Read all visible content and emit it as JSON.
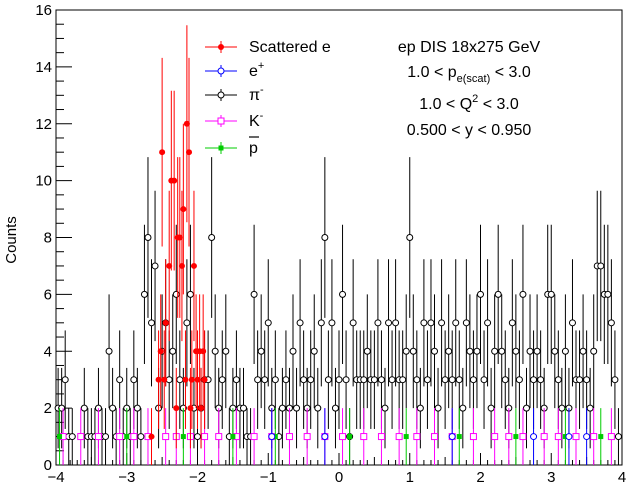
{
  "chart_data": {
    "type": "scatter",
    "xlim": [
      -4,
      4
    ],
    "ylim": [
      0,
      16
    ],
    "xticks": [
      -4,
      -3,
      -2,
      -1,
      0,
      1,
      2,
      3,
      4
    ],
    "yticks": [
      0,
      2,
      4,
      6,
      8,
      10,
      12,
      14,
      16
    ],
    "ylabel": "Counts",
    "xlabel": "",
    "grid": false,
    "legend_position": "top-left-center",
    "annotations": [
      "ep DIS 18x275 GeV",
      "1.0 < p_e(scat) < 3.0",
      "1.0 < Q^2 < 3.0",
      "0.500 < y < 0.950"
    ],
    "series": [
      {
        "name": "Scattered e",
        "color": "#ff0000",
        "marker": "filled-circle",
        "points": [
          [
            -2.65,
            1
          ],
          [
            -2.55,
            3
          ],
          [
            -2.52,
            4
          ],
          [
            -2.5,
            11
          ],
          [
            -2.47,
            3
          ],
          [
            -2.45,
            5
          ],
          [
            -2.4,
            7
          ],
          [
            -2.37,
            10
          ],
          [
            -2.33,
            10
          ],
          [
            -2.3,
            2
          ],
          [
            -2.28,
            8
          ],
          [
            -2.25,
            8
          ],
          [
            -2.22,
            7
          ],
          [
            -2.2,
            9
          ],
          [
            -2.17,
            3
          ],
          [
            -2.15,
            12
          ],
          [
            -2.12,
            11
          ],
          [
            -2.1,
            2
          ],
          [
            -2.08,
            3
          ],
          [
            -2.05,
            7
          ],
          [
            -2.02,
            4
          ],
          [
            -2.0,
            3
          ],
          [
            -1.97,
            4
          ],
          [
            -1.95,
            2
          ],
          [
            -1.92,
            4
          ],
          [
            -1.9,
            3
          ]
        ]
      },
      {
        "name": "e+",
        "color": "#0000ff",
        "marker": "open-circle",
        "points": [
          [
            -0.95,
            1
          ],
          [
            -0.2,
            1
          ],
          [
            1.6,
            1
          ],
          [
            2.75,
            1
          ],
          [
            3.25,
            1
          ],
          [
            3.5,
            1
          ]
        ]
      },
      {
        "name": "π-",
        "color": "#000000",
        "marker": "open-circle",
        "points": [
          [
            -3.97,
            2
          ],
          [
            -3.92,
            2
          ],
          [
            -3.87,
            3
          ],
          [
            -3.82,
            1
          ],
          [
            -3.77,
            1
          ],
          [
            -3.6,
            2
          ],
          [
            -3.55,
            1
          ],
          [
            -3.5,
            1
          ],
          [
            -3.45,
            1
          ],
          [
            -3.4,
            2
          ],
          [
            -3.35,
            1
          ],
          [
            -3.3,
            1
          ],
          [
            -3.25,
            4
          ],
          [
            -3.2,
            2
          ],
          [
            -3.15,
            1
          ],
          [
            -3.1,
            3
          ],
          [
            -3.05,
            1
          ],
          [
            -3.0,
            2
          ],
          [
            -2.95,
            1
          ],
          [
            -2.9,
            3
          ],
          [
            -2.85,
            2
          ],
          [
            -2.8,
            1
          ],
          [
            -2.75,
            6
          ],
          [
            -2.7,
            8
          ],
          [
            -2.65,
            5
          ],
          [
            -2.6,
            7
          ],
          [
            -2.55,
            2
          ],
          [
            -2.5,
            4
          ],
          [
            -2.45,
            5
          ],
          [
            -2.4,
            3
          ],
          [
            -2.35,
            4
          ],
          [
            -2.3,
            6
          ],
          [
            -2.25,
            3
          ],
          [
            -2.2,
            2
          ],
          [
            -2.15,
            5
          ],
          [
            -2.1,
            6
          ],
          [
            -2.05,
            2
          ],
          [
            -2.0,
            1
          ],
          [
            -1.95,
            2
          ],
          [
            -1.9,
            3
          ],
          [
            -1.85,
            3
          ],
          [
            -1.8,
            8
          ],
          [
            -1.75,
            4
          ],
          [
            -1.7,
            2
          ],
          [
            -1.65,
            3
          ],
          [
            -1.6,
            4
          ],
          [
            -1.55,
            1
          ],
          [
            -1.5,
            2
          ],
          [
            -1.45,
            3
          ],
          [
            -1.4,
            2
          ],
          [
            -1.35,
            2
          ],
          [
            -1.3,
            1
          ],
          [
            -1.25,
            1
          ],
          [
            -1.2,
            6
          ],
          [
            -1.15,
            3
          ],
          [
            -1.1,
            4
          ],
          [
            -1.05,
            3
          ],
          [
            -1.0,
            5
          ],
          [
            -0.95,
            2
          ],
          [
            -0.9,
            3
          ],
          [
            -0.85,
            1
          ],
          [
            -0.8,
            2
          ],
          [
            -0.75,
            3
          ],
          [
            -0.7,
            2
          ],
          [
            -0.65,
            4
          ],
          [
            -0.6,
            2
          ],
          [
            -0.55,
            5
          ],
          [
            -0.5,
            3
          ],
          [
            -0.45,
            2
          ],
          [
            -0.4,
            3
          ],
          [
            -0.35,
            4
          ],
          [
            -0.3,
            2
          ],
          [
            -0.25,
            5
          ],
          [
            -0.2,
            8
          ],
          [
            -0.15,
            3
          ],
          [
            -0.1,
            5
          ],
          [
            -0.05,
            2
          ],
          [
            0.0,
            3
          ],
          [
            0.05,
            6
          ],
          [
            0.1,
            3
          ],
          [
            0.15,
            1
          ],
          [
            0.2,
            5
          ],
          [
            0.25,
            3
          ],
          [
            0.3,
            3
          ],
          [
            0.35,
            3
          ],
          [
            0.4,
            4
          ],
          [
            0.45,
            3
          ],
          [
            0.5,
            3
          ],
          [
            0.55,
            5
          ],
          [
            0.6,
            3
          ],
          [
            0.65,
            2
          ],
          [
            0.7,
            5
          ],
          [
            0.75,
            3
          ],
          [
            0.8,
            5
          ],
          [
            0.85,
            3
          ],
          [
            0.9,
            3
          ],
          [
            0.95,
            4
          ],
          [
            1.0,
            8
          ],
          [
            1.05,
            4
          ],
          [
            1.1,
            3
          ],
          [
            1.15,
            2
          ],
          [
            1.2,
            5
          ],
          [
            1.25,
            3
          ],
          [
            1.3,
            5
          ],
          [
            1.35,
            4
          ],
          [
            1.4,
            2
          ],
          [
            1.45,
            5
          ],
          [
            1.5,
            3
          ],
          [
            1.55,
            4
          ],
          [
            1.6,
            3
          ],
          [
            1.65,
            5
          ],
          [
            1.7,
            3
          ],
          [
            1.75,
            2
          ],
          [
            1.8,
            5
          ],
          [
            1.85,
            4
          ],
          [
            1.9,
            3
          ],
          [
            1.95,
            4
          ],
          [
            2.0,
            6
          ],
          [
            2.05,
            3
          ],
          [
            2.1,
            5
          ],
          [
            2.15,
            2
          ],
          [
            2.2,
            4
          ],
          [
            2.25,
            6
          ],
          [
            2.3,
            4
          ],
          [
            2.35,
            3
          ],
          [
            2.4,
            2
          ],
          [
            2.45,
            5
          ],
          [
            2.5,
            4
          ],
          [
            2.55,
            3
          ],
          [
            2.6,
            6
          ],
          [
            2.65,
            2
          ],
          [
            2.7,
            4
          ],
          [
            2.75,
            3
          ],
          [
            2.8,
            4
          ],
          [
            2.85,
            3
          ],
          [
            2.9,
            2
          ],
          [
            2.95,
            6
          ],
          [
            3.0,
            6
          ],
          [
            3.05,
            4
          ],
          [
            3.1,
            3
          ],
          [
            3.15,
            2
          ],
          [
            3.2,
            4
          ],
          [
            3.25,
            2
          ],
          [
            3.3,
            5
          ],
          [
            3.35,
            3
          ],
          [
            3.4,
            3
          ],
          [
            3.45,
            4
          ],
          [
            3.5,
            3
          ],
          [
            3.55,
            2
          ],
          [
            3.6,
            4
          ],
          [
            3.65,
            7
          ],
          [
            3.7,
            7
          ],
          [
            3.75,
            6
          ],
          [
            3.8,
            6
          ],
          [
            3.85,
            5
          ],
          [
            3.9,
            3
          ],
          [
            3.95,
            1
          ]
        ]
      },
      {
        "name": "K-",
        "color": "#ff00ff",
        "marker": "open-square",
        "points": [
          [
            -3.9,
            1
          ],
          [
            -3.65,
            1
          ],
          [
            -3.4,
            1
          ],
          [
            -3.1,
            1
          ],
          [
            -2.9,
            1
          ],
          [
            -2.7,
            1
          ],
          [
            -2.45,
            1
          ],
          [
            -2.3,
            1
          ],
          [
            -2.1,
            1
          ],
          [
            -1.9,
            1
          ],
          [
            -1.7,
            1
          ],
          [
            -1.45,
            1
          ],
          [
            -1.2,
            1
          ],
          [
            -0.95,
            1
          ],
          [
            -0.7,
            1
          ],
          [
            -0.45,
            1
          ],
          [
            -0.2,
            1
          ],
          [
            0.05,
            1
          ],
          [
            0.35,
            1
          ],
          [
            0.6,
            1
          ],
          [
            0.85,
            1
          ],
          [
            1.1,
            1
          ],
          [
            1.35,
            1
          ],
          [
            1.6,
            1
          ],
          [
            1.9,
            1
          ],
          [
            2.2,
            1
          ],
          [
            2.4,
            1
          ],
          [
            2.6,
            1
          ],
          [
            2.9,
            1
          ],
          [
            3.1,
            1
          ],
          [
            3.35,
            1
          ],
          [
            3.6,
            1
          ],
          [
            3.85,
            1
          ]
        ]
      },
      {
        "name": "p̄",
        "color": "#00cc00",
        "marker": "filled-square",
        "points": [
          [
            -3.95,
            1
          ],
          [
            -3.0,
            1
          ],
          [
            -2.2,
            1
          ],
          [
            -1.5,
            1
          ],
          [
            -0.9,
            1
          ],
          [
            0.15,
            1
          ],
          [
            0.95,
            1
          ],
          [
            1.7,
            1
          ],
          [
            2.5,
            1
          ],
          [
            3.2,
            1
          ],
          [
            3.7,
            1
          ]
        ]
      }
    ]
  },
  "legend": {
    "entries": [
      {
        "label": "Scattered e",
        "sup": ""
      },
      {
        "label": "e",
        "sup": "+"
      },
      {
        "label": "π",
        "sup": "-"
      },
      {
        "label": "K",
        "sup": "-"
      },
      {
        "label": "p",
        "sup": ""
      }
    ]
  },
  "annotation": {
    "line1": "ep DIS 18x275 GeV",
    "line2_pre": "1.0 < p",
    "line2_sub": "e(scat)",
    "line2_post": " < 3.0",
    "line3_pre": "1.0 < Q",
    "line3_sup": "2",
    "line3_post": " < 3.0",
    "line4": "0.500 < y < 0.950"
  }
}
